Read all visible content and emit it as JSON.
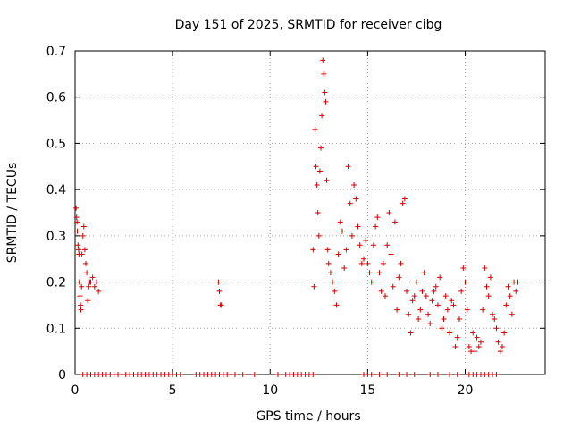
{
  "chart_data": {
    "type": "scatter",
    "title": "Day 151 of 2025, SRMTID for receiver cibg",
    "xlabel": "GPS time / hours",
    "ylabel": "SRMTID / TECUs",
    "xlim": [
      0,
      24.1
    ],
    "ylim": [
      0,
      0.7
    ],
    "xticks": [
      0,
      5,
      10,
      15,
      20
    ],
    "xtick_labels": [
      "0",
      "5",
      "10",
      "15",
      "20"
    ],
    "yticks": [
      0,
      0.1,
      0.2,
      0.3,
      0.4,
      0.5,
      0.6,
      0.7
    ],
    "ytick_labels": [
      "0",
      "0.1",
      "0.2",
      "0.3",
      "0.4",
      "0.5",
      "0.6",
      "0.7"
    ],
    "grid": true,
    "marker": "+",
    "series": [
      {
        "name": "SRMTID",
        "color": "#d40000",
        "x": [
          0.05,
          0.08,
          0.1,
          0.12,
          0.15,
          0.18,
          0.2,
          0.22,
          0.25,
          0.28,
          0.3,
          0.33,
          0.35,
          0.4,
          0.45,
          0.5,
          0.55,
          0.6,
          0.65,
          0.7,
          0.75,
          0.8,
          0.9,
          1.0,
          1.1,
          1.2,
          7.35,
          7.4,
          7.45,
          7.5,
          12.2,
          12.25,
          12.3,
          12.35,
          12.4,
          12.45,
          12.5,
          12.55,
          12.6,
          12.65,
          12.7,
          12.75,
          12.8,
          12.85,
          12.9,
          12.95,
          13.0,
          13.1,
          13.2,
          13.3,
          13.4,
          13.5,
          13.6,
          13.7,
          13.8,
          13.9,
          14.0,
          14.1,
          14.2,
          14.3,
          14.4,
          14.5,
          14.6,
          14.7,
          14.8,
          14.9,
          15.0,
          15.1,
          15.2,
          15.3,
          15.4,
          15.5,
          15.6,
          15.7,
          15.8,
          15.9,
          16.0,
          16.1,
          16.2,
          16.3,
          16.4,
          16.5,
          16.6,
          16.7,
          16.8,
          16.9,
          17.0,
          17.1,
          17.2,
          17.3,
          17.4,
          17.5,
          17.6,
          17.7,
          17.8,
          17.9,
          18.0,
          18.1,
          18.2,
          18.3,
          18.4,
          18.5,
          18.6,
          18.7,
          18.8,
          18.9,
          19.0,
          19.1,
          19.2,
          19.3,
          19.4,
          19.5,
          19.6,
          19.7,
          19.8,
          19.9,
          20.0,
          20.1,
          20.2,
          20.3,
          20.4,
          20.5,
          20.6,
          20.7,
          20.8,
          20.9,
          21.0,
          21.1,
          21.2,
          21.3,
          21.4,
          21.5,
          21.6,
          21.7,
          21.8,
          21.9,
          22.0,
          22.1,
          22.2,
          22.3,
          22.4,
          22.5,
          22.6,
          22.7,
          0.4,
          0.6,
          0.8,
          1.0,
          1.2,
          1.4,
          1.6,
          1.8,
          2.0,
          2.2,
          2.6,
          2.8,
          3.0,
          3.2,
          3.4,
          3.6,
          3.8,
          4.0,
          4.2,
          4.4,
          4.6,
          4.8,
          5.0,
          5.2,
          5.4,
          6.2,
          6.4,
          6.6,
          6.8,
          7.0,
          7.2,
          7.4,
          7.6,
          7.8,
          8.2,
          8.6,
          9.2,
          10.4,
          10.8,
          11.0,
          11.2,
          11.4,
          11.6,
          11.8,
          12.0,
          12.2,
          14.8,
          15.0,
          15.2,
          15.6,
          16.0,
          16.6,
          17.0,
          17.4,
          18.2,
          18.6,
          19.2,
          19.6,
          20.2,
          20.4,
          20.6,
          20.8,
          21.0,
          21.2,
          21.4,
          21.6
        ],
        "y": [
          0.36,
          0.34,
          0.33,
          0.31,
          0.28,
          0.27,
          0.26,
          0.2,
          0.17,
          0.15,
          0.14,
          0.19,
          0.26,
          0.3,
          0.32,
          0.27,
          0.24,
          0.22,
          0.16,
          0.19,
          0.2,
          0.2,
          0.21,
          0.19,
          0.2,
          0.18,
          0.2,
          0.18,
          0.15,
          0.15,
          0.27,
          0.19,
          0.53,
          0.45,
          0.41,
          0.35,
          0.3,
          0.44,
          0.49,
          0.56,
          0.68,
          0.65,
          0.61,
          0.59,
          0.42,
          0.27,
          0.24,
          0.22,
          0.2,
          0.18,
          0.15,
          0.26,
          0.33,
          0.31,
          0.23,
          0.27,
          0.45,
          0.37,
          0.3,
          0.41,
          0.38,
          0.32,
          0.28,
          0.24,
          0.25,
          0.29,
          0.24,
          0.22,
          0.2,
          0.28,
          0.32,
          0.34,
          0.22,
          0.18,
          0.24,
          0.17,
          0.28,
          0.35,
          0.26,
          0.19,
          0.33,
          0.14,
          0.21,
          0.24,
          0.37,
          0.38,
          0.18,
          0.13,
          0.09,
          0.16,
          0.17,
          0.2,
          0.12,
          0.14,
          0.18,
          0.22,
          0.17,
          0.13,
          0.11,
          0.16,
          0.18,
          0.19,
          0.15,
          0.21,
          0.1,
          0.12,
          0.17,
          0.14,
          0.09,
          0.16,
          0.15,
          0.06,
          0.08,
          0.12,
          0.18,
          0.23,
          0.2,
          0.14,
          0.06,
          0.05,
          0.09,
          0.05,
          0.08,
          0.06,
          0.07,
          0.14,
          0.23,
          0.19,
          0.17,
          0.21,
          0.13,
          0.12,
          0.1,
          0.07,
          0.05,
          0.06,
          0.09,
          0.15,
          0.19,
          0.17,
          0.13,
          0.2,
          0.18,
          0.2,
          0,
          0,
          0,
          0,
          0,
          0,
          0,
          0,
          0,
          0,
          0,
          0,
          0,
          0,
          0,
          0,
          0,
          0,
          0,
          0,
          0,
          0,
          0,
          0,
          0,
          0,
          0,
          0,
          0,
          0,
          0,
          0,
          0,
          0,
          0,
          0,
          0,
          0,
          0,
          0,
          0,
          0,
          0,
          0,
          0,
          0,
          0,
          0,
          0,
          0,
          0,
          0,
          0,
          0,
          0,
          0,
          0,
          0,
          0,
          0,
          0,
          0,
          0,
          0,
          0,
          0
        ]
      }
    ]
  }
}
